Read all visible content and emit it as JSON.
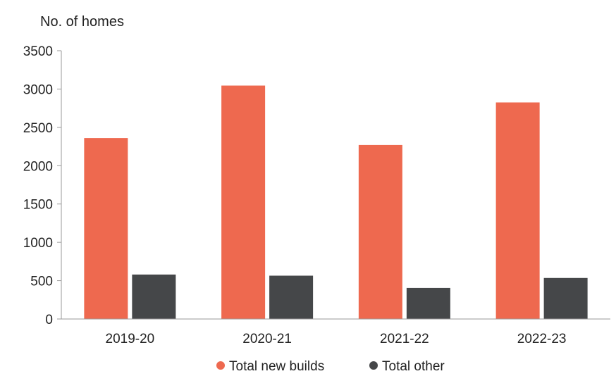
{
  "chart_data": {
    "type": "bar",
    "title": "",
    "ylabel": "No. of homes",
    "xlabel": "",
    "ylim": [
      0,
      3500
    ],
    "yticks": [
      0,
      500,
      1000,
      1500,
      2000,
      2500,
      3000,
      3500
    ],
    "categories": [
      "2019-20",
      "2020-21",
      "2021-22",
      "2022-23"
    ],
    "series": [
      {
        "name": "Total new builds",
        "color": "#ee694f",
        "values": [
          2360,
          3045,
          2270,
          2825
        ]
      },
      {
        "name": "Total other",
        "color": "#454749",
        "values": [
          580,
          565,
          405,
          535
        ]
      }
    ],
    "grid": false,
    "legend": "bottom-center"
  }
}
